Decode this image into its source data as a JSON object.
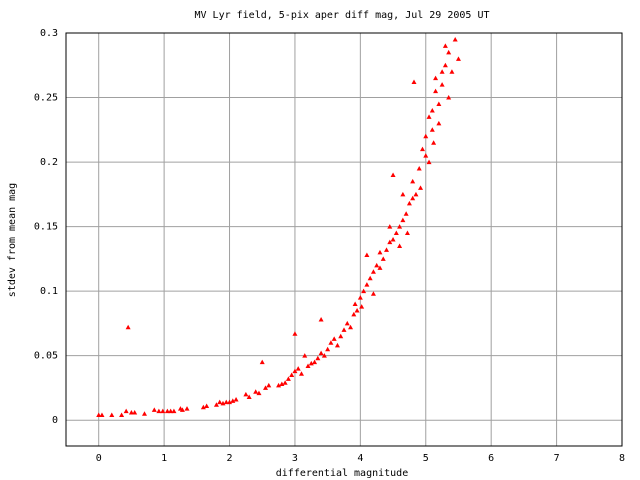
{
  "chart_data": {
    "type": "scatter",
    "title": "MV Lyr field,  5-pix aper diff mag, Jul 29 2005 UT",
    "x_label": "differential magnitude",
    "y_label": "stdev from mean mag",
    "color": "#ff0000",
    "grid": true,
    "xlim": [
      -0.5,
      8
    ],
    "ylim": [
      -0.02,
      0.3
    ],
    "xticks": [
      0,
      1,
      2,
      3,
      4,
      5,
      6,
      7,
      8
    ],
    "yticks": [
      0,
      0.05,
      0.1,
      0.15,
      0.2,
      0.25,
      0.3
    ],
    "x": [
      0.0,
      0.05,
      0.2,
      0.35,
      0.42,
      0.45,
      0.5,
      0.55,
      0.7,
      0.85,
      0.92,
      0.98,
      1.05,
      1.1,
      1.15,
      1.25,
      1.28,
      1.35,
      1.6,
      1.65,
      1.8,
      1.85,
      1.9,
      1.95,
      2.0,
      2.05,
      2.1,
      2.25,
      2.3,
      2.4,
      2.45,
      2.5,
      2.55,
      2.6,
      2.75,
      2.8,
      2.85,
      2.9,
      2.95,
      3.0,
      3.0,
      3.05,
      3.1,
      3.15,
      3.2,
      3.25,
      3.3,
      3.35,
      3.4,
      3.4,
      3.45,
      3.5,
      3.55,
      3.6,
      3.65,
      3.7,
      3.75,
      3.8,
      3.85,
      3.9,
      3.92,
      3.95,
      4.0,
      4.02,
      4.05,
      4.1,
      4.1,
      4.15,
      4.2,
      4.2,
      4.25,
      4.3,
      4.3,
      4.35,
      4.4,
      4.45,
      4.45,
      4.5,
      4.5,
      4.55,
      4.6,
      4.6,
      4.65,
      4.65,
      4.7,
      4.72,
      4.75,
      4.8,
      4.8,
      4.82,
      4.85,
      4.9,
      4.92,
      4.95,
      5.0,
      5.0,
      5.05,
      5.05,
      5.1,
      5.1,
      5.12,
      5.15,
      5.15,
      5.2,
      5.2,
      5.25,
      5.25,
      5.3,
      5.3,
      5.35,
      5.35,
      5.4,
      5.45,
      5.5
    ],
    "values": [
      0.004,
      0.004,
      0.004,
      0.004,
      0.007,
      0.072,
      0.006,
      0.006,
      0.005,
      0.008,
      0.007,
      0.007,
      0.007,
      0.007,
      0.007,
      0.009,
      0.008,
      0.009,
      0.01,
      0.011,
      0.012,
      0.014,
      0.013,
      0.014,
      0.014,
      0.015,
      0.016,
      0.02,
      0.018,
      0.022,
      0.021,
      0.045,
      0.025,
      0.027,
      0.027,
      0.028,
      0.029,
      0.032,
      0.035,
      0.067,
      0.038,
      0.04,
      0.036,
      0.05,
      0.042,
      0.044,
      0.045,
      0.048,
      0.052,
      0.078,
      0.05,
      0.055,
      0.06,
      0.063,
      0.058,
      0.065,
      0.07,
      0.075,
      0.072,
      0.082,
      0.09,
      0.085,
      0.095,
      0.088,
      0.1,
      0.105,
      0.128,
      0.11,
      0.115,
      0.098,
      0.12,
      0.118,
      0.13,
      0.125,
      0.132,
      0.138,
      0.15,
      0.14,
      0.19,
      0.145,
      0.15,
      0.135,
      0.155,
      0.175,
      0.16,
      0.145,
      0.168,
      0.172,
      0.185,
      0.262,
      0.175,
      0.195,
      0.18,
      0.21,
      0.205,
      0.22,
      0.235,
      0.2,
      0.225,
      0.24,
      0.215,
      0.255,
      0.265,
      0.245,
      0.23,
      0.27,
      0.26,
      0.29,
      0.275,
      0.285,
      0.25,
      0.27,
      0.295,
      0.28
    ]
  }
}
